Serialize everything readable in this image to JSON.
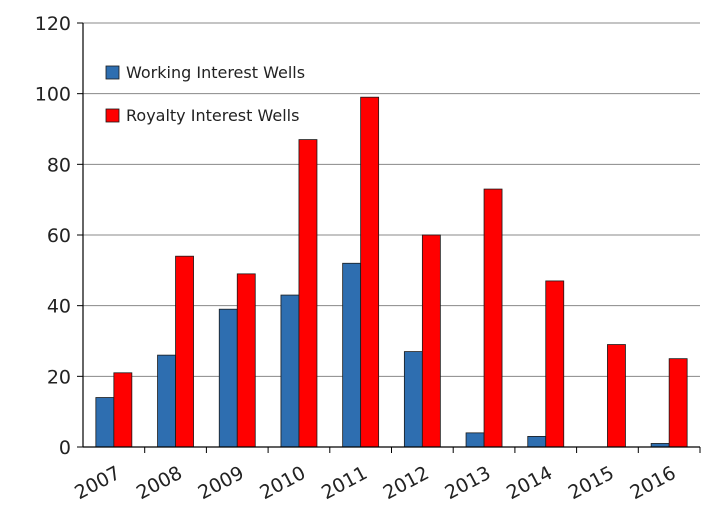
{
  "chart_data": {
    "type": "bar",
    "categories": [
      "2007",
      "2008",
      "2009",
      "2010",
      "2011",
      "2012",
      "2013",
      "2014",
      "2015",
      "2016"
    ],
    "series": [
      {
        "name": "Working Interest Wells",
        "color": "#2e6eb0",
        "values": [
          14,
          26,
          39,
          43,
          52,
          27,
          4,
          3,
          0,
          1
        ]
      },
      {
        "name": "Royalty Interest Wells",
        "color": "#ff0000",
        "values": [
          21,
          54,
          49,
          87,
          99,
          60,
          73,
          47,
          29,
          25
        ]
      }
    ],
    "ylim": [
      0,
      120
    ],
    "yticks": [
      0,
      20,
      40,
      60,
      80,
      100,
      120
    ],
    "grid": true
  }
}
